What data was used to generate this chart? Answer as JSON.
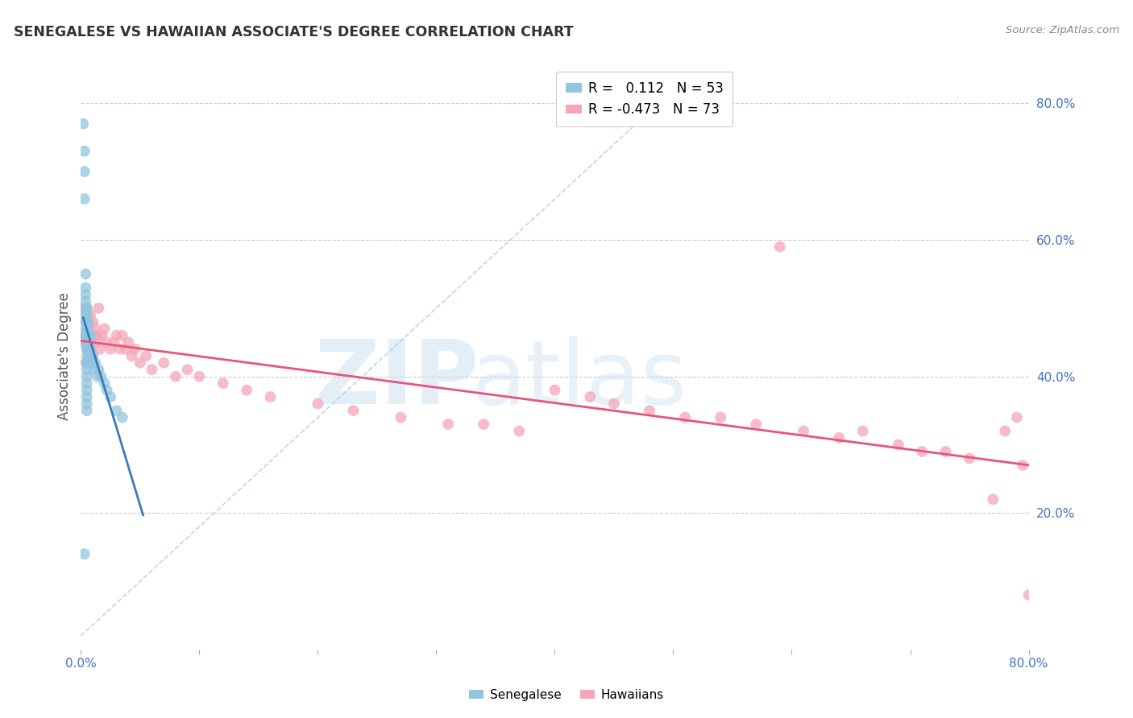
{
  "title": "SENEGALESE VS HAWAIIAN ASSOCIATE'S DEGREE CORRELATION CHART",
  "source": "Source: ZipAtlas.com",
  "ylabel": "Associate's Degree",
  "right_yticks": [
    "80.0%",
    "60.0%",
    "40.0%",
    "20.0%"
  ],
  "right_ytick_vals": [
    0.8,
    0.6,
    0.4,
    0.2
  ],
  "legend_blue_r_val": "0.112",
  "legend_blue_n": "N = 53",
  "legend_pink_r": "-0.473",
  "legend_pink_n": "N = 73",
  "blue_color": "#92c5de",
  "pink_color": "#f4a6b8",
  "blue_line_color": "#3a7abf",
  "pink_line_color": "#e8547a",
  "diag_color": "#aacce8",
  "blue_scatter_x": [
    0.002,
    0.003,
    0.003,
    0.003,
    0.004,
    0.004,
    0.004,
    0.004,
    0.004,
    0.004,
    0.004,
    0.004,
    0.004,
    0.004,
    0.004,
    0.005,
    0.005,
    0.005,
    0.005,
    0.005,
    0.005,
    0.005,
    0.005,
    0.005,
    0.005,
    0.005,
    0.005,
    0.005,
    0.005,
    0.005,
    0.005,
    0.006,
    0.006,
    0.006,
    0.006,
    0.007,
    0.007,
    0.008,
    0.008,
    0.008,
    0.009,
    0.01,
    0.011,
    0.012,
    0.014,
    0.015,
    0.017,
    0.02,
    0.022,
    0.025,
    0.03,
    0.035,
    0.003
  ],
  "blue_scatter_y": [
    0.77,
    0.73,
    0.7,
    0.66,
    0.55,
    0.53,
    0.52,
    0.51,
    0.5,
    0.49,
    0.48,
    0.48,
    0.47,
    0.46,
    0.45,
    0.5,
    0.49,
    0.48,
    0.47,
    0.46,
    0.45,
    0.44,
    0.43,
    0.42,
    0.41,
    0.4,
    0.39,
    0.38,
    0.37,
    0.36,
    0.35,
    0.48,
    0.46,
    0.44,
    0.42,
    0.45,
    0.43,
    0.46,
    0.44,
    0.42,
    0.42,
    0.43,
    0.41,
    0.42,
    0.4,
    0.41,
    0.4,
    0.39,
    0.38,
    0.37,
    0.35,
    0.34,
    0.14
  ],
  "pink_scatter_x": [
    0.002,
    0.003,
    0.003,
    0.004,
    0.004,
    0.005,
    0.005,
    0.005,
    0.005,
    0.005,
    0.006,
    0.006,
    0.007,
    0.007,
    0.008,
    0.008,
    0.009,
    0.01,
    0.01,
    0.011,
    0.012,
    0.013,
    0.014,
    0.015,
    0.016,
    0.018,
    0.02,
    0.022,
    0.025,
    0.028,
    0.03,
    0.033,
    0.035,
    0.038,
    0.04,
    0.043,
    0.046,
    0.05,
    0.055,
    0.06,
    0.07,
    0.08,
    0.09,
    0.1,
    0.12,
    0.14,
    0.16,
    0.2,
    0.23,
    0.27,
    0.31,
    0.34,
    0.37,
    0.4,
    0.43,
    0.45,
    0.48,
    0.51,
    0.54,
    0.57,
    0.59,
    0.61,
    0.64,
    0.66,
    0.69,
    0.71,
    0.73,
    0.75,
    0.77,
    0.78,
    0.79,
    0.795,
    0.8
  ],
  "pink_scatter_y": [
    0.46,
    0.5,
    0.45,
    0.48,
    0.42,
    0.5,
    0.48,
    0.46,
    0.44,
    0.42,
    0.48,
    0.45,
    0.47,
    0.44,
    0.49,
    0.45,
    0.46,
    0.48,
    0.43,
    0.46,
    0.47,
    0.45,
    0.46,
    0.5,
    0.44,
    0.46,
    0.47,
    0.45,
    0.44,
    0.45,
    0.46,
    0.44,
    0.46,
    0.44,
    0.45,
    0.43,
    0.44,
    0.42,
    0.43,
    0.41,
    0.42,
    0.4,
    0.41,
    0.4,
    0.39,
    0.38,
    0.37,
    0.36,
    0.35,
    0.34,
    0.33,
    0.33,
    0.32,
    0.38,
    0.37,
    0.36,
    0.35,
    0.34,
    0.34,
    0.33,
    0.59,
    0.32,
    0.31,
    0.32,
    0.3,
    0.29,
    0.29,
    0.28,
    0.22,
    0.32,
    0.34,
    0.27,
    0.08
  ],
  "xlim": [
    0.0,
    0.8
  ],
  "ylim": [
    0.0,
    0.86
  ],
  "x_tick_vals": [
    0.0,
    0.1,
    0.2,
    0.3,
    0.4,
    0.5,
    0.6,
    0.7,
    0.8
  ],
  "figsize": [
    14.06,
    8.92
  ],
  "dpi": 100
}
